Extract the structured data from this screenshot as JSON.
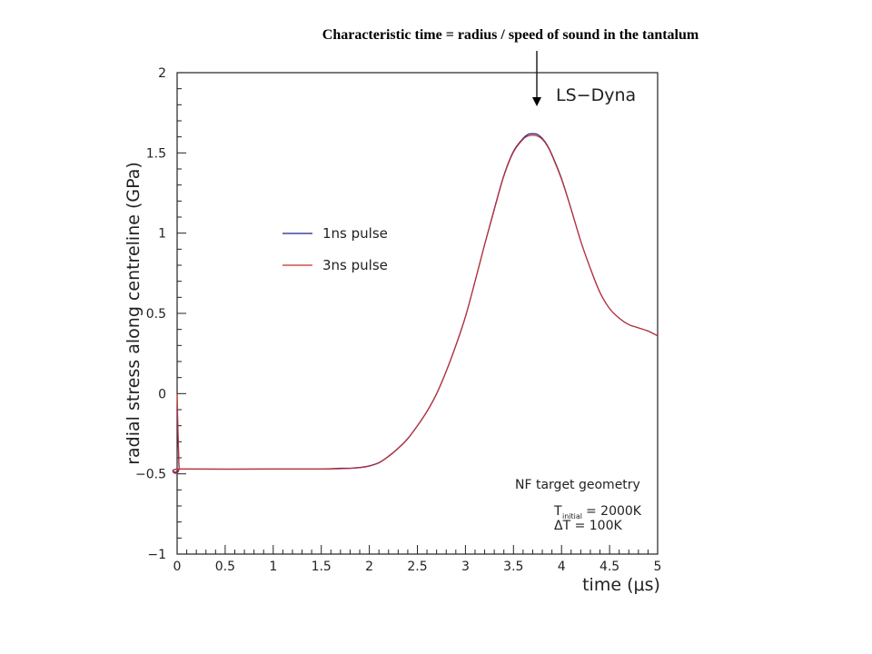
{
  "annotation": {
    "text": "Characteristic time = radius / speed of sound in the tantalum"
  },
  "plot_label": "LS−Dyna",
  "info": {
    "geometry": "NF target geometry",
    "t_initial_symbol": "T",
    "t_initial_subscript": "initial",
    "t_initial_value": " = 2000K",
    "delta_t": "ΔT =   100K"
  },
  "chart_data": {
    "type": "line",
    "title": "",
    "xlabel": "time (μs)",
    "ylabel": "radial stress along centreline (GPa)",
    "xlim": [
      0,
      5
    ],
    "ylim": [
      -1,
      2
    ],
    "x_ticks": [
      "0",
      "0.5",
      "1",
      "1.5",
      "2",
      "2.5",
      "3",
      "3.5",
      "4",
      "4.5",
      "5"
    ],
    "y_ticks": [
      "−1",
      "−0.5",
      "0",
      "0.5",
      "1",
      "1.5",
      "2"
    ],
    "grid": false,
    "legend_position": "left-middle",
    "x": [
      0,
      0.02,
      0.03,
      1.0,
      1.5,
      1.7,
      1.8,
      1.9,
      2.0,
      2.1,
      2.2,
      2.3,
      2.4,
      2.5,
      2.6,
      2.7,
      2.8,
      2.9,
      3.0,
      3.1,
      3.2,
      3.3,
      3.4,
      3.5,
      3.6,
      3.65,
      3.7,
      3.75,
      3.8,
      3.85,
      3.9,
      4.0,
      4.1,
      4.2,
      4.3,
      4.4,
      4.5,
      4.6,
      4.7,
      4.8,
      4.9,
      5.0
    ],
    "series": [
      {
        "name": "1ns pulse",
        "color": "#1f1f8f",
        "values": [
          -0.1,
          -0.46,
          -0.47,
          -0.47,
          -0.47,
          -0.465,
          -0.465,
          -0.46,
          -0.45,
          -0.43,
          -0.39,
          -0.34,
          -0.28,
          -0.2,
          -0.11,
          0.0,
          0.14,
          0.3,
          0.48,
          0.7,
          0.93,
          1.15,
          1.36,
          1.51,
          1.59,
          1.615,
          1.62,
          1.615,
          1.59,
          1.55,
          1.49,
          1.34,
          1.15,
          0.95,
          0.78,
          0.63,
          0.53,
          0.47,
          0.43,
          0.41,
          0.39,
          0.36
        ]
      },
      {
        "name": "3ns pulse",
        "color": "#c03030",
        "values": [
          0.0,
          -0.46,
          -0.47,
          -0.47,
          -0.47,
          -0.468,
          -0.466,
          -0.462,
          -0.452,
          -0.432,
          -0.392,
          -0.342,
          -0.282,
          -0.202,
          -0.112,
          -0.002,
          0.138,
          0.298,
          0.478,
          0.698,
          0.928,
          1.145,
          1.355,
          1.505,
          1.585,
          1.605,
          1.61,
          1.605,
          1.585,
          1.545,
          1.485,
          1.335,
          1.148,
          0.95,
          0.78,
          0.63,
          0.53,
          0.47,
          0.43,
          0.41,
          0.39,
          0.36
        ]
      }
    ]
  }
}
